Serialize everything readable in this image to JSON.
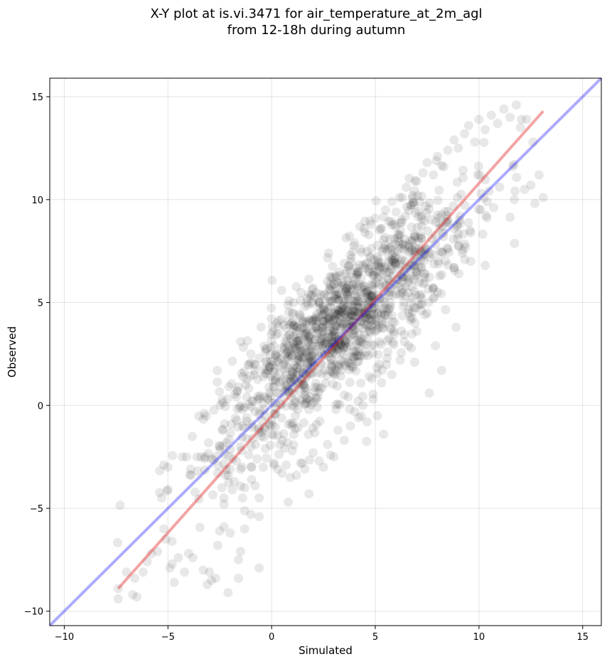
{
  "chart_data": {
    "type": "scatter",
    "title": [
      "X-Y plot at is.vi.3471 for air_temperature_at_2m_agl",
      "from 12-18h during autumn"
    ],
    "xlabel": "Simulated",
    "ylabel": "Observed",
    "xlim": [
      -10.7,
      15.9
    ],
    "ylim": [
      -10.7,
      15.9
    ],
    "xticks": [
      -10,
      -5,
      0,
      5,
      10,
      15
    ],
    "yticks": [
      -10,
      -5,
      0,
      5,
      10,
      15
    ],
    "xtick_labels": [
      "−10",
      "−5",
      "0",
      "5",
      "10",
      "15"
    ],
    "ytick_labels": [
      "−10",
      "−5",
      "0",
      "5",
      "10",
      "15"
    ],
    "grid": true,
    "point_color": "#000000",
    "point_opacity": 0.09,
    "approx_point_count": 1500,
    "points": [
      [
        -7.4,
        -8.9
      ],
      [
        -7.4,
        -9.4
      ],
      [
        -7.0,
        -8.1
      ],
      [
        -6.7,
        -9.2
      ],
      [
        -6.6,
        -8.4
      ],
      [
        -6.5,
        -9.3
      ],
      [
        -6.2,
        -8.1
      ],
      [
        -6.0,
        -7.6
      ],
      [
        -5.8,
        -7.2
      ],
      [
        -5.5,
        -7.1
      ],
      [
        -5.2,
        -6.0
      ],
      [
        -5.1,
        -6.5
      ],
      [
        -4.9,
        -7.9
      ],
      [
        -4.8,
        -7.7
      ],
      [
        -4.7,
        -8.6
      ],
      [
        -4.5,
        -7.4
      ],
      [
        -4.2,
        -8.1
      ],
      [
        -4.0,
        -7.2
      ],
      [
        -3.8,
        -7.4
      ],
      [
        -3.3,
        -8.0
      ],
      [
        -3.1,
        -8.7
      ],
      [
        -3.0,
        -8.1
      ],
      [
        -2.9,
        -8.5
      ],
      [
        -2.7,
        -8.4
      ],
      [
        -2.6,
        -6.8
      ],
      [
        -2.5,
        -6.1
      ],
      [
        -2.3,
        -5.9
      ],
      [
        -2.1,
        -9.1
      ],
      [
        -2.0,
        -6.2
      ],
      [
        -1.6,
        -8.4
      ],
      [
        -1.6,
        -7.5
      ],
      [
        -1.5,
        -7.1
      ],
      [
        -1.3,
        -6.0
      ],
      [
        -1.0,
        -5.3
      ],
      [
        -0.6,
        -5.4
      ],
      [
        -0.6,
        -7.9
      ],
      [
        -5.3,
        -4.5
      ],
      [
        -5.2,
        -2.9
      ],
      [
        -5.0,
        -3.0
      ],
      [
        -4.8,
        -6.6
      ],
      [
        -4.3,
        -2.5
      ],
      [
        -4.1,
        -2.5
      ],
      [
        -3.9,
        -3.1
      ],
      [
        -3.9,
        -3.4
      ],
      [
        -3.6,
        -2.5
      ],
      [
        -3.4,
        -2.5
      ],
      [
        -3.2,
        -2.5
      ],
      [
        -2.9,
        -2.6
      ],
      [
        -2.7,
        -2.5
      ],
      [
        -2.6,
        -3.3
      ],
      [
        -2.5,
        -2.0
      ],
      [
        -2.4,
        -4.0
      ],
      [
        -2.3,
        -4.5
      ],
      [
        -2.3,
        -4.8
      ],
      [
        -2.1,
        -3.4
      ],
      [
        -2.0,
        -3.1
      ],
      [
        -1.9,
        -4.1
      ],
      [
        -1.8,
        -3.7
      ],
      [
        -1.7,
        -2.7
      ],
      [
        -1.5,
        -3.1
      ],
      [
        -1.5,
        -2.0
      ],
      [
        -1.4,
        -4.5
      ],
      [
        -1.3,
        -4.0
      ],
      [
        -1.2,
        -1.6
      ],
      [
        -1.1,
        -2.4
      ],
      [
        -1.0,
        -2.0
      ],
      [
        -0.9,
        -1.6
      ],
      [
        -0.8,
        -3.9
      ],
      [
        -0.7,
        -2.6
      ],
      [
        -0.6,
        -1.3
      ],
      [
        -0.6,
        -4.5
      ],
      [
        -0.4,
        -3.0
      ],
      [
        -0.3,
        -2.1
      ],
      [
        -0.1,
        -0.9
      ],
      [
        -1.7,
        0.4
      ],
      [
        -1.6,
        0.9
      ],
      [
        -1.4,
        -0.2
      ],
      [
        -1.2,
        -0.6
      ],
      [
        -0.9,
        0.2
      ],
      [
        -0.8,
        -0.3
      ],
      [
        -0.6,
        -1.1
      ],
      [
        -0.4,
        0.1
      ],
      [
        -0.3,
        -0.5
      ],
      [
        -0.1,
        0.6
      ],
      [
        0.0,
        -1.4
      ],
      [
        0.1,
        -2.8
      ],
      [
        0.2,
        -0.4
      ],
      [
        0.3,
        -3.1
      ],
      [
        0.4,
        -1.9
      ],
      [
        0.5,
        -3.3
      ],
      [
        0.7,
        -2.9
      ],
      [
        0.8,
        -4.7
      ],
      [
        0.9,
        -3.5
      ],
      [
        1.0,
        -2.2
      ],
      [
        1.2,
        -3.4
      ],
      [
        1.4,
        -2.8
      ],
      [
        1.6,
        -3.1
      ],
      [
        1.8,
        -4.3
      ],
      [
        2.0,
        -2.3
      ],
      [
        2.3,
        -2.7
      ],
      [
        2.5,
        -3.0
      ],
      [
        2.7,
        -1.9
      ],
      [
        3.0,
        -2.5
      ],
      [
        3.2,
        -1.2
      ],
      [
        3.5,
        -1.7
      ],
      [
        3.8,
        -1.0
      ],
      [
        4.2,
        -0.6
      ],
      [
        4.6,
        -0.8
      ],
      [
        5.1,
        -0.5
      ],
      [
        5.4,
        -1.4
      ],
      [
        -1.1,
        2.0
      ],
      [
        -1.0,
        2.5
      ],
      [
        -0.8,
        1.7
      ],
      [
        -0.6,
        2.3
      ],
      [
        -0.4,
        1.4
      ],
      [
        -0.3,
        2.6
      ],
      [
        -0.1,
        1.9
      ],
      [
        0.1,
        2.9
      ],
      [
        0.3,
        3.5
      ],
      [
        0.5,
        2.8
      ],
      [
        0.6,
        3.9
      ],
      [
        0.8,
        4.1
      ],
      [
        1.0,
        4.5
      ],
      [
        1.2,
        3.6
      ],
      [
        1.4,
        5.1
      ],
      [
        1.6,
        4.8
      ],
      [
        1.8,
        5.4
      ],
      [
        2.0,
        5.7
      ],
      [
        2.3,
        5.0
      ],
      [
        2.5,
        4.4
      ],
      [
        2.8,
        5.6
      ],
      [
        3.0,
        5.9
      ],
      [
        3.3,
        6.3
      ],
      [
        3.5,
        6.9
      ],
      [
        3.8,
        7.3
      ],
      [
        4.0,
        7.9
      ],
      [
        4.3,
        7.6
      ],
      [
        4.5,
        8.4
      ],
      [
        4.8,
        8.8
      ],
      [
        5.0,
        9.1
      ],
      [
        5.3,
        8.6
      ],
      [
        5.5,
        9.5
      ],
      [
        5.8,
        9.9
      ],
      [
        6.0,
        9.4
      ],
      [
        6.3,
        10.1
      ],
      [
        6.5,
        10.6
      ],
      [
        6.8,
        10.2
      ],
      [
        7.0,
        10.9
      ],
      [
        7.3,
        11.3
      ],
      [
        7.5,
        11.8
      ],
      [
        7.8,
        11.2
      ],
      [
        8.0,
        12.1
      ],
      [
        8.3,
        11.6
      ],
      [
        8.5,
        12.4
      ],
      [
        8.8,
        12.9
      ],
      [
        9.0,
        12.5
      ],
      [
        9.3,
        13.2
      ],
      [
        9.5,
        13.6
      ],
      [
        9.8,
        12.8
      ],
      [
        10.0,
        13.9
      ],
      [
        10.3,
        13.4
      ],
      [
        10.6,
        14.1
      ],
      [
        10.9,
        13.7
      ],
      [
        11.2,
        14.4
      ],
      [
        11.5,
        14.0
      ],
      [
        11.8,
        14.6
      ],
      [
        12.0,
        13.5
      ],
      [
        12.3,
        13.9
      ],
      [
        12.6,
        12.8
      ],
      [
        12.9,
        11.2
      ],
      [
        13.1,
        10.1
      ],
      [
        12.5,
        10.7
      ],
      [
        12.2,
        10.5
      ],
      [
        11.7,
        10.0
      ],
      [
        11.0,
        10.6
      ],
      [
        10.4,
        9.9
      ],
      [
        10.1,
        10.3
      ],
      [
        9.6,
        8.4
      ],
      [
        9.2,
        7.4
      ],
      [
        8.8,
        6.7
      ],
      [
        9.6,
        7.0
      ],
      [
        10.3,
        6.8
      ],
      [
        8.5,
        7.6
      ],
      [
        8.1,
        6.3
      ],
      [
        7.8,
        5.2
      ],
      [
        7.4,
        4.4
      ],
      [
        7.0,
        3.6
      ],
      [
        6.6,
        2.9
      ],
      [
        6.2,
        2.2
      ],
      [
        5.8,
        1.5
      ],
      [
        5.3,
        1.1
      ],
      [
        4.9,
        0.3
      ],
      [
        4.4,
        0.0
      ],
      [
        4.0,
        -0.3
      ],
      [
        3.5,
        0.5
      ],
      [
        3.1,
        -0.2
      ],
      [
        7.6,
        0.6
      ],
      [
        8.2,
        1.7
      ],
      [
        7.9,
        2.9
      ],
      [
        8.9,
        3.8
      ],
      [
        7.1,
        4.9
      ],
      [
        6.7,
        4.3
      ],
      [
        6.4,
        3.1
      ],
      [
        6.9,
        2.1
      ],
      [
        5.9,
        3.6
      ],
      [
        5.6,
        2.6
      ],
      [
        5.2,
        2.0
      ],
      [
        4.7,
        1.4
      ],
      [
        4.3,
        2.4
      ],
      [
        3.9,
        1.9
      ]
    ],
    "core_cloud": {
      "center": [
        3.5,
        4.0
      ],
      "slope": 1.0,
      "spread_along": 4.8,
      "spread_across": 1.6
    },
    "series": [
      {
        "kind": "regression",
        "color": "#e31a1c",
        "opacity": 0.4,
        "x": [
          -7.4,
          13.1
        ],
        "y": [
          -8.9,
          14.3
        ]
      },
      {
        "kind": "one-to-one",
        "color": "#0000ff",
        "opacity": 0.33,
        "x": [
          -10.7,
          15.9
        ],
        "y": [
          -10.7,
          15.9
        ]
      }
    ]
  }
}
